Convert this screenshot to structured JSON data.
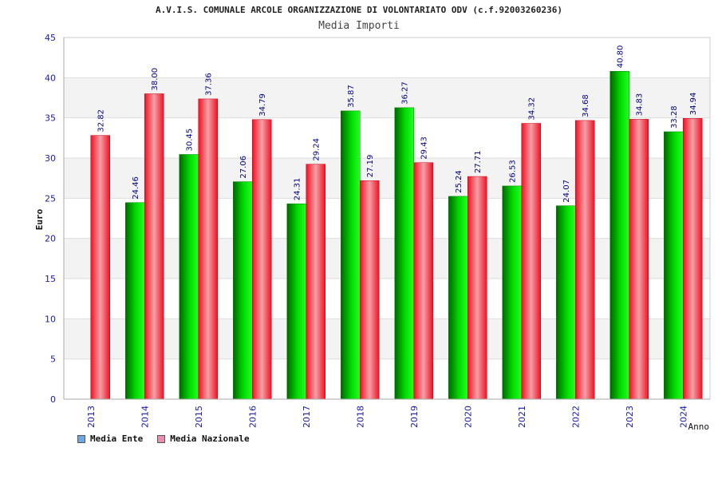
{
  "chart_data": {
    "type": "bar",
    "title": "A.V.I.S. COMUNALE ARCOLE ORGANIZZAZIONE DI VOLONTARIATO ODV (c.f.92003260236)",
    "subtitle": "Media Importi",
    "ylabel": "Euro",
    "xlabel": "Anno",
    "ylim": [
      0,
      45
    ],
    "yticks": [
      0,
      5,
      10,
      15,
      20,
      25,
      30,
      35,
      40,
      45
    ],
    "categories": [
      "2013",
      "2014",
      "2015",
      "2016",
      "2017",
      "2018",
      "2019",
      "2020",
      "2021",
      "2022",
      "2023",
      "2024"
    ],
    "series": [
      {
        "name": "Media Ente",
        "values": [
          null,
          24.46,
          30.45,
          27.06,
          24.31,
          35.87,
          36.27,
          25.24,
          26.53,
          24.07,
          40.8,
          33.28
        ],
        "labels": [
          "",
          "24.46",
          "30.45",
          "27.06",
          "24.31",
          "35.87",
          "36.27",
          "25.24",
          "26.53",
          "24.07",
          "40.80",
          "33.28"
        ]
      },
      {
        "name": "Media Nazionale",
        "values": [
          32.82,
          38.0,
          37.36,
          34.79,
          29.24,
          27.19,
          29.43,
          27.71,
          34.32,
          34.68,
          34.83,
          34.94
        ],
        "labels": [
          "32.82",
          "38.00",
          "37.36",
          "34.79",
          "29.24",
          "27.19",
          "29.43",
          "27.71",
          "34.32",
          "34.68",
          "34.83",
          "34.94"
        ]
      }
    ],
    "legend": [
      {
        "label": "Media Ente",
        "color": "#6fa8dc"
      },
      {
        "label": "Media Nazionale",
        "color": "#e58fb3"
      }
    ],
    "legend_position": "bottom-left",
    "grid": true,
    "colors": {
      "ente": "#00cc00",
      "nazionale": "#ee2233",
      "axis_text": "#1a1aa6",
      "label_text": "#000080"
    }
  }
}
